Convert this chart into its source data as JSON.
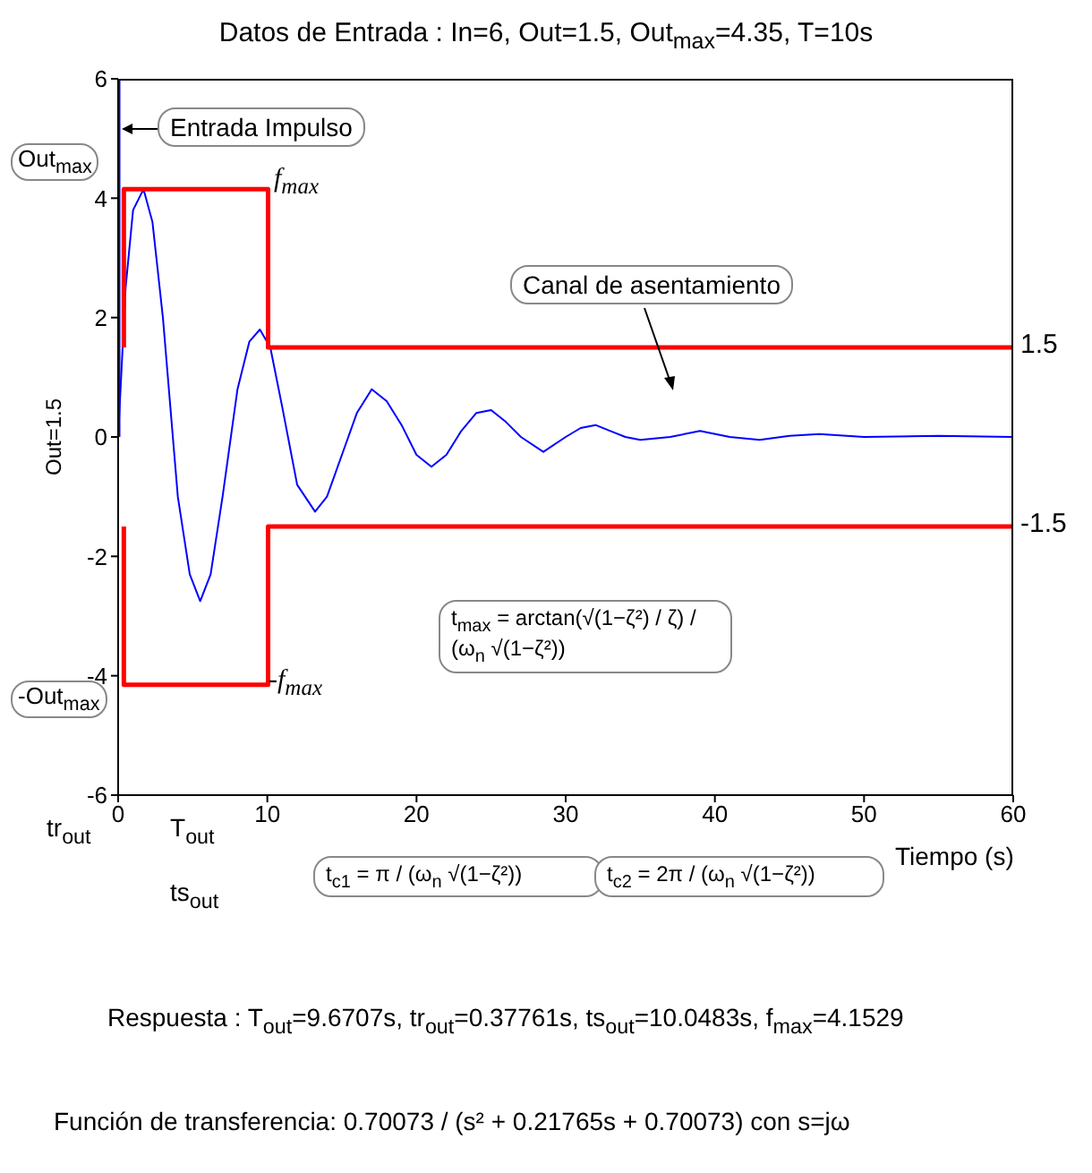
{
  "chart_data": {
    "type": "line",
    "title": "Datos de Entrada : In=6, Out=1.5, Out$_{max}$=4.35, T=10s",
    "xlabel": "Tiempo (s)",
    "ylabel": "Out=1.5",
    "xlim": [
      0,
      60
    ],
    "ylim": [
      -6,
      6
    ],
    "xticks": [
      0,
      10,
      20,
      30,
      40,
      50,
      60
    ],
    "yticks": [
      -6,
      -4,
      -2,
      0,
      2,
      4,
      6
    ],
    "grid": false,
    "legend": false,
    "marker": "none",
    "line_style": "solid",
    "series": [
      {
        "color": "#0000ff",
        "x": [
          0,
          0.5,
          1,
          1.7,
          2.3,
          3,
          4,
          4.8,
          5.5,
          6.2,
          7,
          8,
          8.8,
          9.5,
          10.2,
          11,
          12,
          13.2,
          14,
          15,
          16,
          17,
          18,
          19,
          20,
          21,
          22,
          23,
          24,
          25,
          26,
          27,
          28.5,
          30,
          31,
          32,
          33,
          34,
          35,
          37,
          39,
          41,
          43,
          45,
          47,
          50,
          55,
          60
        ],
        "values": [
          0,
          2.5,
          3.8,
          4.15,
          3.6,
          2,
          -1,
          -2.3,
          -2.75,
          -2.3,
          -1,
          0.8,
          1.6,
          1.8,
          1.5,
          0.5,
          -0.8,
          -1.25,
          -1,
          -0.3,
          0.4,
          0.8,
          0.6,
          0.2,
          -0.3,
          -0.5,
          -0.3,
          0.1,
          0.4,
          0.45,
          0.25,
          0,
          -0.25,
          0,
          0.15,
          0.2,
          0.1,
          0,
          -0.05,
          0,
          0.1,
          0,
          -0.05,
          0.02,
          0.05,
          0,
          0.02,
          0
        ]
      },
      {
        "color": "#0000ff",
        "x": [
          0,
          0
        ],
        "values": [
          0,
          6
        ]
      },
      {
        "color": "#ff0000",
        "x": [
          0.38,
          0.38,
          10.05,
          10.05,
          60
        ],
        "values": [
          1.5,
          4.15,
          4.15,
          1.5,
          1.5
        ]
      },
      {
        "color": "#ff0000",
        "x": [
          0.38,
          0.38,
          10.05,
          10.05,
          60
        ],
        "values": [
          -1.5,
          -4.15,
          -4.15,
          -1.5,
          -1.5
        ]
      }
    ],
    "annotations": [
      "f$_{max}$",
      "-f$_{max}$",
      "1.5",
      "-1.5",
      "Out$_{max}$",
      "-Out$_{max}$",
      "Entrada Impulso",
      "Canal de asentamiento",
      "tr$_{out}$",
      "T$_{out}$",
      "ts$_{out}$",
      "t$_{max}$ = arctan(√(1−ζ²) / ζ) / (ω$_{n}$ √(1−ζ²))",
      "t$_{c1}$ = π / (ω$_{n}$ √(1−ζ²))",
      "t$_{c2}$ = 2π / (ω$_{n}$ √(1−ζ²))",
      "Respuesta : T$_{out}$=9.6707s, tr$_{out}$=0.37761s, ts$_{out}$=10.0483s, f$_{max}$=4.1529",
      "Función de transferencia: 0.70073 / (s² + 0.21765s + 0.70073) con s=jω"
    ]
  }
}
